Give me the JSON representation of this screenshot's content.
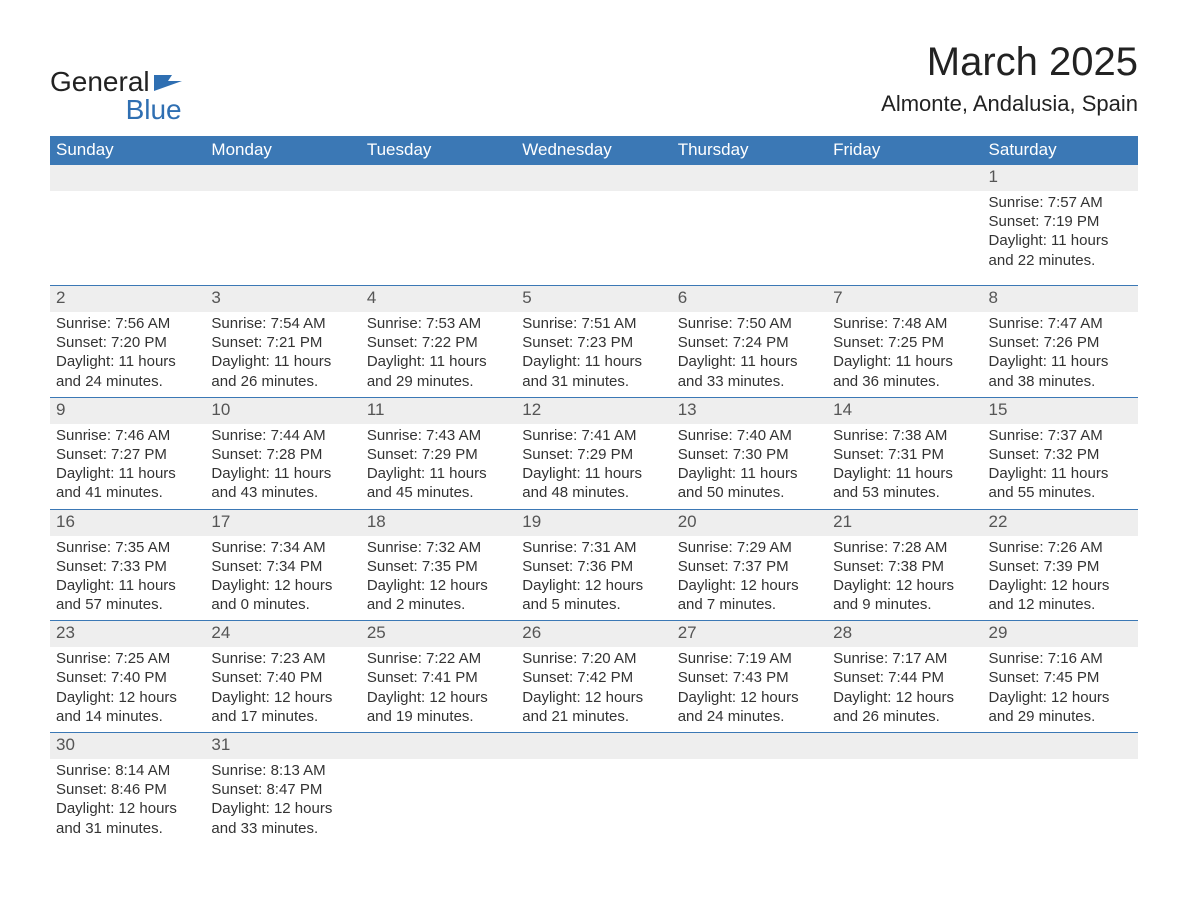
{
  "logo": {
    "general": "General",
    "blue": "Blue"
  },
  "title": "March 2025",
  "location": "Almonte, Andalusia, Spain",
  "colors": {
    "header_bg": "#3b78b5",
    "header_text": "#ffffff",
    "daynum_bg": "#eeeeee",
    "border": "#3b78b5",
    "text": "#333333",
    "logo_blue": "#2f6fb2",
    "background": "#ffffff"
  },
  "weekdays": [
    "Sunday",
    "Monday",
    "Tuesday",
    "Wednesday",
    "Thursday",
    "Friday",
    "Saturday"
  ],
  "weeks": [
    [
      {
        "day": "",
        "lines": [
          "",
          "",
          "",
          ""
        ]
      },
      {
        "day": "",
        "lines": [
          "",
          "",
          "",
          ""
        ]
      },
      {
        "day": "",
        "lines": [
          "",
          "",
          "",
          ""
        ]
      },
      {
        "day": "",
        "lines": [
          "",
          "",
          "",
          ""
        ]
      },
      {
        "day": "",
        "lines": [
          "",
          "",
          "",
          ""
        ]
      },
      {
        "day": "",
        "lines": [
          "",
          "",
          "",
          ""
        ]
      },
      {
        "day": "1",
        "lines": [
          "Sunrise: 7:57 AM",
          "Sunset: 7:19 PM",
          "Daylight: 11 hours",
          "and 22 minutes."
        ]
      }
    ],
    [
      {
        "day": "2",
        "lines": [
          "Sunrise: 7:56 AM",
          "Sunset: 7:20 PM",
          "Daylight: 11 hours",
          "and 24 minutes."
        ]
      },
      {
        "day": "3",
        "lines": [
          "Sunrise: 7:54 AM",
          "Sunset: 7:21 PM",
          "Daylight: 11 hours",
          "and 26 minutes."
        ]
      },
      {
        "day": "4",
        "lines": [
          "Sunrise: 7:53 AM",
          "Sunset: 7:22 PM",
          "Daylight: 11 hours",
          "and 29 minutes."
        ]
      },
      {
        "day": "5",
        "lines": [
          "Sunrise: 7:51 AM",
          "Sunset: 7:23 PM",
          "Daylight: 11 hours",
          "and 31 minutes."
        ]
      },
      {
        "day": "6",
        "lines": [
          "Sunrise: 7:50 AM",
          "Sunset: 7:24 PM",
          "Daylight: 11 hours",
          "and 33 minutes."
        ]
      },
      {
        "day": "7",
        "lines": [
          "Sunrise: 7:48 AM",
          "Sunset: 7:25 PM",
          "Daylight: 11 hours",
          "and 36 minutes."
        ]
      },
      {
        "day": "8",
        "lines": [
          "Sunrise: 7:47 AM",
          "Sunset: 7:26 PM",
          "Daylight: 11 hours",
          "and 38 minutes."
        ]
      }
    ],
    [
      {
        "day": "9",
        "lines": [
          "Sunrise: 7:46 AM",
          "Sunset: 7:27 PM",
          "Daylight: 11 hours",
          "and 41 minutes."
        ]
      },
      {
        "day": "10",
        "lines": [
          "Sunrise: 7:44 AM",
          "Sunset: 7:28 PM",
          "Daylight: 11 hours",
          "and 43 minutes."
        ]
      },
      {
        "day": "11",
        "lines": [
          "Sunrise: 7:43 AM",
          "Sunset: 7:29 PM",
          "Daylight: 11 hours",
          "and 45 minutes."
        ]
      },
      {
        "day": "12",
        "lines": [
          "Sunrise: 7:41 AM",
          "Sunset: 7:29 PM",
          "Daylight: 11 hours",
          "and 48 minutes."
        ]
      },
      {
        "day": "13",
        "lines": [
          "Sunrise: 7:40 AM",
          "Sunset: 7:30 PM",
          "Daylight: 11 hours",
          "and 50 minutes."
        ]
      },
      {
        "day": "14",
        "lines": [
          "Sunrise: 7:38 AM",
          "Sunset: 7:31 PM",
          "Daylight: 11 hours",
          "and 53 minutes."
        ]
      },
      {
        "day": "15",
        "lines": [
          "Sunrise: 7:37 AM",
          "Sunset: 7:32 PM",
          "Daylight: 11 hours",
          "and 55 minutes."
        ]
      }
    ],
    [
      {
        "day": "16",
        "lines": [
          "Sunrise: 7:35 AM",
          "Sunset: 7:33 PM",
          "Daylight: 11 hours",
          "and 57 minutes."
        ]
      },
      {
        "day": "17",
        "lines": [
          "Sunrise: 7:34 AM",
          "Sunset: 7:34 PM",
          "Daylight: 12 hours",
          "and 0 minutes."
        ]
      },
      {
        "day": "18",
        "lines": [
          "Sunrise: 7:32 AM",
          "Sunset: 7:35 PM",
          "Daylight: 12 hours",
          "and 2 minutes."
        ]
      },
      {
        "day": "19",
        "lines": [
          "Sunrise: 7:31 AM",
          "Sunset: 7:36 PM",
          "Daylight: 12 hours",
          "and 5 minutes."
        ]
      },
      {
        "day": "20",
        "lines": [
          "Sunrise: 7:29 AM",
          "Sunset: 7:37 PM",
          "Daylight: 12 hours",
          "and 7 minutes."
        ]
      },
      {
        "day": "21",
        "lines": [
          "Sunrise: 7:28 AM",
          "Sunset: 7:38 PM",
          "Daylight: 12 hours",
          "and 9 minutes."
        ]
      },
      {
        "day": "22",
        "lines": [
          "Sunrise: 7:26 AM",
          "Sunset: 7:39 PM",
          "Daylight: 12 hours",
          "and 12 minutes."
        ]
      }
    ],
    [
      {
        "day": "23",
        "lines": [
          "Sunrise: 7:25 AM",
          "Sunset: 7:40 PM",
          "Daylight: 12 hours",
          "and 14 minutes."
        ]
      },
      {
        "day": "24",
        "lines": [
          "Sunrise: 7:23 AM",
          "Sunset: 7:40 PM",
          "Daylight: 12 hours",
          "and 17 minutes."
        ]
      },
      {
        "day": "25",
        "lines": [
          "Sunrise: 7:22 AM",
          "Sunset: 7:41 PM",
          "Daylight: 12 hours",
          "and 19 minutes."
        ]
      },
      {
        "day": "26",
        "lines": [
          "Sunrise: 7:20 AM",
          "Sunset: 7:42 PM",
          "Daylight: 12 hours",
          "and 21 minutes."
        ]
      },
      {
        "day": "27",
        "lines": [
          "Sunrise: 7:19 AM",
          "Sunset: 7:43 PM",
          "Daylight: 12 hours",
          "and 24 minutes."
        ]
      },
      {
        "day": "28",
        "lines": [
          "Sunrise: 7:17 AM",
          "Sunset: 7:44 PM",
          "Daylight: 12 hours",
          "and 26 minutes."
        ]
      },
      {
        "day": "29",
        "lines": [
          "Sunrise: 7:16 AM",
          "Sunset: 7:45 PM",
          "Daylight: 12 hours",
          "and 29 minutes."
        ]
      }
    ],
    [
      {
        "day": "30",
        "lines": [
          "Sunrise: 8:14 AM",
          "Sunset: 8:46 PM",
          "Daylight: 12 hours",
          "and 31 minutes."
        ]
      },
      {
        "day": "31",
        "lines": [
          "Sunrise: 8:13 AM",
          "Sunset: 8:47 PM",
          "Daylight: 12 hours",
          "and 33 minutes."
        ]
      },
      {
        "day": "",
        "lines": [
          "",
          "",
          "",
          ""
        ]
      },
      {
        "day": "",
        "lines": [
          "",
          "",
          "",
          ""
        ]
      },
      {
        "day": "",
        "lines": [
          "",
          "",
          "",
          ""
        ]
      },
      {
        "day": "",
        "lines": [
          "",
          "",
          "",
          ""
        ]
      },
      {
        "day": "",
        "lines": [
          "",
          "",
          "",
          ""
        ]
      }
    ]
  ]
}
